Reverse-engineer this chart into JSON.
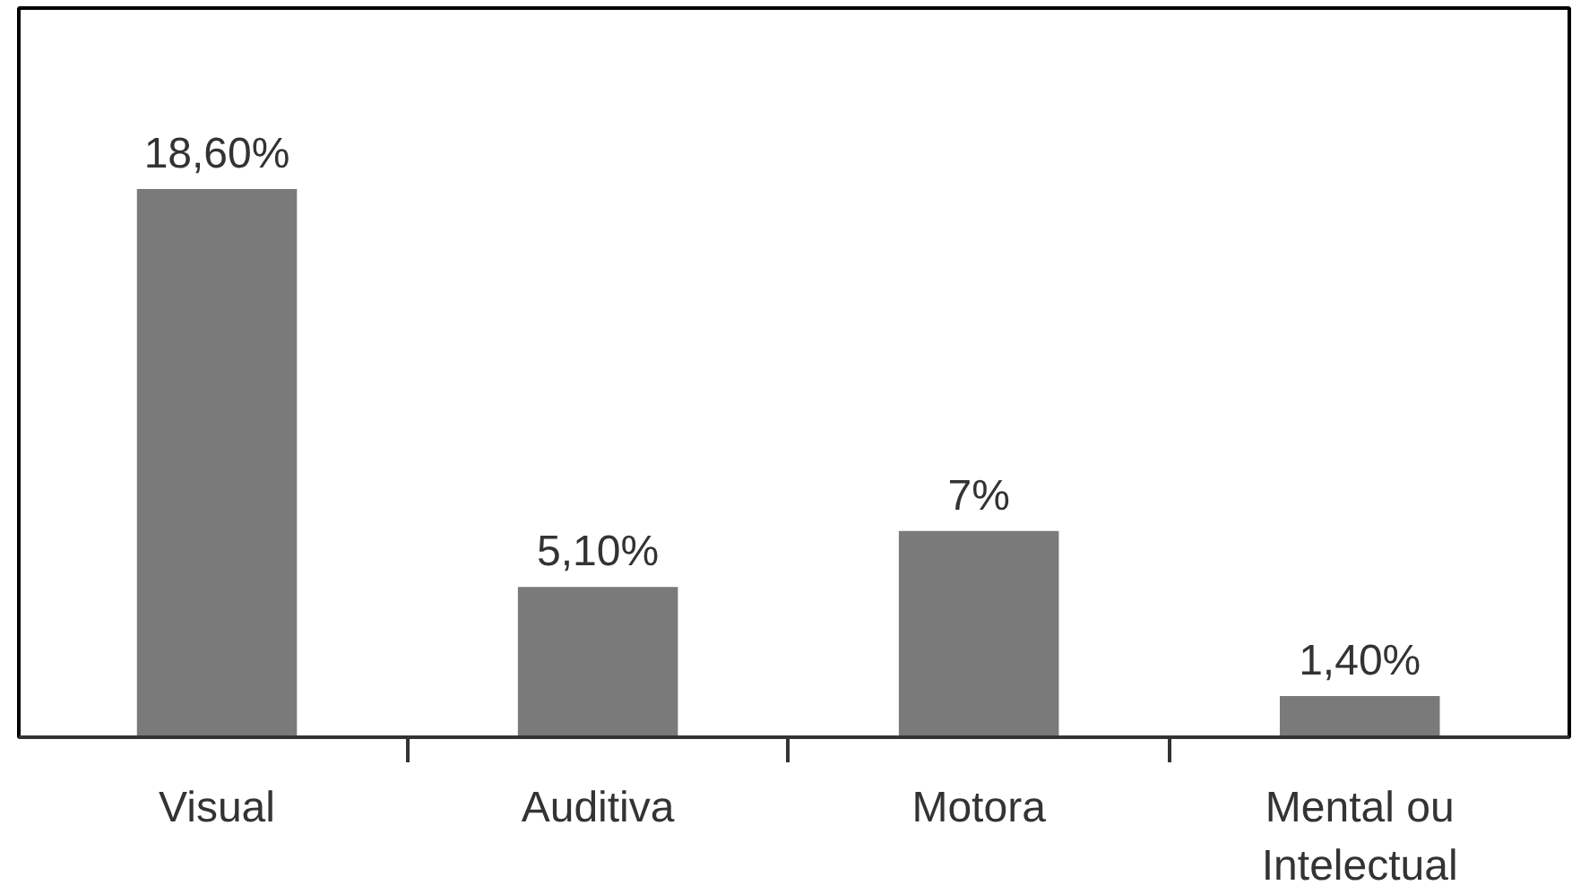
{
  "chart_data": {
    "type": "bar",
    "categories": [
      "Visual",
      "Auditiva",
      "Motora",
      "Mental ou\nIntelectual"
    ],
    "values": [
      18.6,
      5.1,
      7,
      1.4
    ],
    "value_labels": [
      "18,60%",
      "5,10%",
      "7%",
      "1,40%"
    ],
    "color": "#7a7a7a",
    "grid": false,
    "tick_labels": "x"
  }
}
